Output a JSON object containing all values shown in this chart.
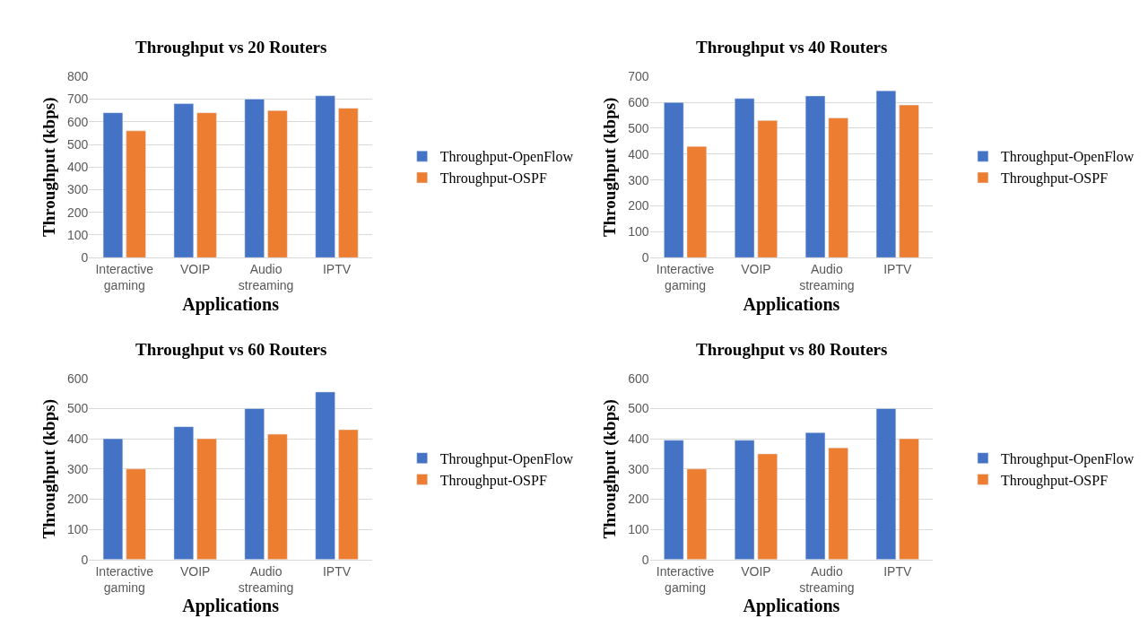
{
  "chart_data": [
    {
      "type": "bar",
      "title": "Throughput vs 20 Routers",
      "xlabel": "Applications",
      "ylabel": "Throughput (kbps)",
      "categories": [
        "Interactive gaming",
        "VOIP",
        "Audio streaming",
        "IPTV"
      ],
      "series": [
        {
          "name": "Throughput-OpenFlow",
          "color": "#4472c4",
          "values": [
            640,
            680,
            700,
            715
          ]
        },
        {
          "name": "Throughput-OSPF",
          "color": "#ed7d31",
          "values": [
            560,
            640,
            650,
            660
          ]
        }
      ],
      "ylim": [
        0,
        800
      ],
      "yticks": [
        0,
        100,
        200,
        300,
        400,
        500,
        600,
        700,
        800
      ],
      "grid": "y",
      "legend": "right"
    },
    {
      "type": "bar",
      "title": "Throughput vs 40 Routers",
      "xlabel": "Applications",
      "ylabel": "Throughput (kbps)",
      "categories": [
        "Interactive gaming",
        "VOIP",
        "Audio streaming",
        "IPTV"
      ],
      "series": [
        {
          "name": "Throughput-OpenFlow",
          "color": "#4472c4",
          "values": [
            600,
            615,
            625,
            645
          ]
        },
        {
          "name": "Throughput-OSPF",
          "color": "#ed7d31",
          "values": [
            430,
            530,
            540,
            590
          ]
        }
      ],
      "ylim": [
        0,
        700
      ],
      "yticks": [
        0,
        100,
        200,
        300,
        400,
        500,
        600,
        700
      ],
      "grid": "y",
      "legend": "right"
    },
    {
      "type": "bar",
      "title": "Throughput vs 60 Routers",
      "xlabel": "Applications",
      "ylabel": "Throughput (kbps)",
      "categories": [
        "Interactive gaming",
        "VOIP",
        "Audio streaming",
        "IPTV"
      ],
      "series": [
        {
          "name": "Throughput-OpenFlow",
          "color": "#4472c4",
          "values": [
            400,
            440,
            500,
            555
          ]
        },
        {
          "name": "Throughput-OSPF",
          "color": "#ed7d31",
          "values": [
            300,
            400,
            415,
            430
          ]
        }
      ],
      "ylim": [
        0,
        600
      ],
      "yticks": [
        0,
        100,
        200,
        300,
        400,
        500,
        600
      ],
      "grid": "y",
      "legend": "right"
    },
    {
      "type": "bar",
      "title": "Throughput vs 80 Routers",
      "xlabel": "Applications",
      "ylabel": "Throughput (kbps)",
      "categories": [
        "Interactive gaming",
        "VOIP",
        "Audio streaming",
        "IPTV"
      ],
      "series": [
        {
          "name": "Throughput-OpenFlow",
          "color": "#4472c4",
          "values": [
            395,
            395,
            420,
            500
          ]
        },
        {
          "name": "Throughput-OSPF",
          "color": "#ed7d31",
          "values": [
            300,
            350,
            370,
            400
          ]
        }
      ],
      "ylim": [
        0,
        600
      ],
      "yticks": [
        0,
        100,
        200,
        300,
        400,
        500,
        600
      ],
      "grid": "y",
      "legend": "right"
    }
  ]
}
